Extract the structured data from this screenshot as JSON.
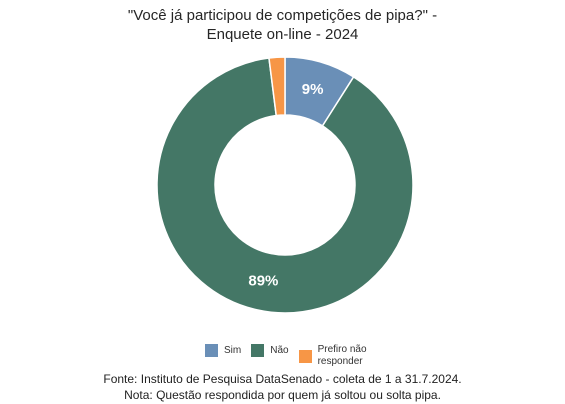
{
  "chart_data": {
    "type": "pie",
    "title_lines": [
      "\"Você já participou de competições de pipa?\" -",
      "Enquete on-line - 2024"
    ],
    "categories": [
      "Sim",
      "Não",
      "Prefiro não responder"
    ],
    "values": [
      9,
      89,
      2
    ],
    "labels": [
      "9%",
      "89%",
      ""
    ],
    "colors": [
      "#6a8fb7",
      "#447766",
      "#f79646"
    ],
    "legend_position": "bottom"
  },
  "footer": {
    "source": "Fonte: Instituto de Pesquisa DataSenado - coleta de 1 a 31.7.2024.",
    "note": "Nota: Questão respondida por quem já soltou ou solta pipa."
  }
}
